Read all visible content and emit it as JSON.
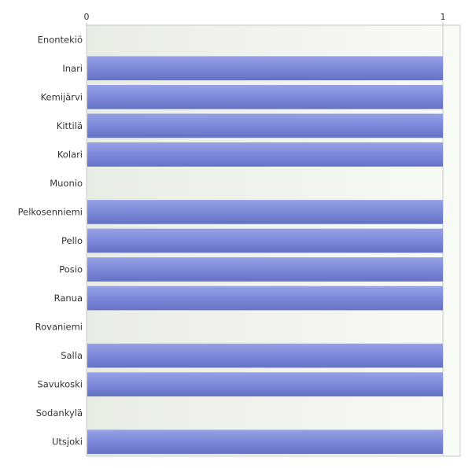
{
  "chart_data": {
    "type": "bar",
    "orientation": "horizontal",
    "categories": [
      "Enontekiö",
      "Inari",
      "Kemijärvi",
      "Kittilä",
      "Kolari",
      "Muonio",
      "Pelkosenniemi",
      "Pello",
      "Posio",
      "Ranua",
      "Rovaniemi",
      "Salla",
      "Savukoski",
      "Sodankylä",
      "Utsjoki"
    ],
    "values": [
      0,
      1,
      1,
      1,
      1,
      0,
      1,
      1,
      1,
      1,
      0,
      1,
      1,
      0,
      1
    ],
    "xlim": [
      0,
      1
    ],
    "xticks": [
      "0",
      "1"
    ],
    "axis_position": "top",
    "grid": true,
    "bar_color": "#7b87d8",
    "plot_background": "#eef1ea"
  }
}
